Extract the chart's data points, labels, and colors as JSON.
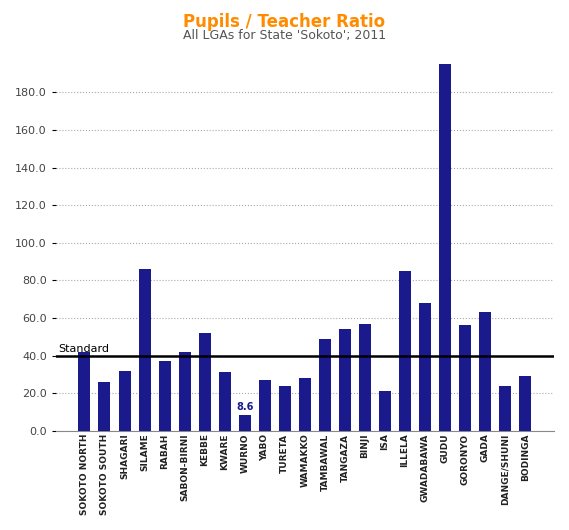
{
  "title": "Pupils / Teacher Ratio",
  "subtitle": "All LGAs for State 'Sokoto'; 2011",
  "title_color": "#FF8C00",
  "subtitle_color": "#555555",
  "bar_color": "#1a1a8c",
  "standard_line": 40.0,
  "standard_label": "Standard",
  "categories": [
    "SOKOTO NORTH",
    "SOKOTO SOUTH",
    "SHAGARI",
    "SILAME",
    "RABAH",
    "SABON-BIRNI",
    "KEBBE",
    "KWARE",
    "WURNO",
    "YABO",
    "TURETA",
    "WAMAKKO",
    "TAMBAWAL",
    "TANGAZA",
    "BINJI",
    "ISA",
    "ILLELA",
    "GWADABAWA",
    "GUDU",
    "GORONYO",
    "GADA",
    "DANGE/SHUNI",
    "BODINGA"
  ],
  "values": [
    42.0,
    26.0,
    32.0,
    86.0,
    37.0,
    42.0,
    52.0,
    31.0,
    8.6,
    27.0,
    24.0,
    28.0,
    49.0,
    54.0,
    57.0,
    21.0,
    85.0,
    68.0,
    195.0,
    56.0,
    63.0,
    24.0,
    29.0
  ],
  "ylim": [
    0,
    200
  ],
  "yticks": [
    0.0,
    20.0,
    40.0,
    60.0,
    80.0,
    100.0,
    120.0,
    140.0,
    160.0,
    180.0
  ],
  "wurno_label": "8.6",
  "background_color": "#ffffff",
  "grid_color": "#aaaaaa"
}
